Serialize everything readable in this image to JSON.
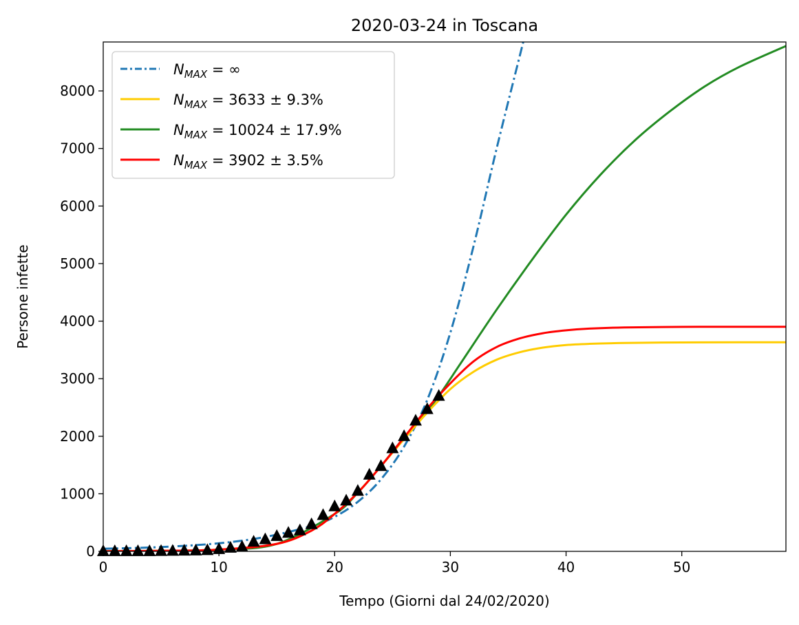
{
  "chart_data": {
    "type": "line",
    "title": "2020-03-24 in Toscana",
    "xlabel": "Tempo (Giorni dal 24/02/2020)",
    "ylabel": "Persone infette",
    "xlim": [
      0,
      59
    ],
    "ylim": [
      0,
      8850
    ],
    "xticks": [
      0,
      10,
      20,
      30,
      40,
      50
    ],
    "yticks": [
      0,
      1000,
      2000,
      3000,
      4000,
      5000,
      6000,
      7000,
      8000
    ],
    "legend_position": "top-left",
    "series": [
      {
        "name": "N_MAX = ∞",
        "legend": {
          "base": "N",
          "sub": "MAX",
          "rest": " = ∞"
        },
        "color": "#1f77b4",
        "style": "dashdot",
        "x": [
          0,
          5,
          10,
          14,
          18,
          20,
          22,
          24,
          26,
          28,
          30,
          32,
          34,
          36.3
        ],
        "y": [
          45,
          75,
          140,
          250,
          440,
          600,
          860,
          1250,
          1820,
          2630,
          3800,
          5300,
          7000,
          8850
        ]
      },
      {
        "name": "N_MAX = 3633 ± 9.3%",
        "legend": {
          "base": "N",
          "sub": "MAX",
          "rest": " = 3633 ± 9.3%"
        },
        "color": "#ffcc00",
        "style": "solid",
        "x": [
          0,
          5,
          10,
          15,
          18,
          20,
          22,
          24,
          26,
          28,
          30,
          32,
          34,
          36,
          38,
          40,
          42,
          45,
          50,
          55,
          59
        ],
        "y": [
          3,
          9,
          30,
          130,
          360,
          650,
          1020,
          1480,
          1950,
          2410,
          2820,
          3120,
          3330,
          3460,
          3540,
          3585,
          3605,
          3620,
          3630,
          3632,
          3633
        ]
      },
      {
        "name": "N_MAX = 10024 ± 17.9%",
        "legend": {
          "base": "N",
          "sub": "MAX",
          "rest": " = 10024 ± 17.9%"
        },
        "color": "#228b22",
        "style": "solid",
        "x": [
          0,
          5,
          10,
          15,
          20,
          22,
          24,
          26,
          28,
          29,
          31,
          34,
          37,
          40,
          43,
          46,
          49,
          52,
          55,
          59
        ],
        "y": [
          3,
          9,
          30,
          130,
          650,
          1020,
          1480,
          1980,
          2450,
          2700,
          3300,
          4200,
          5050,
          5850,
          6550,
          7150,
          7650,
          8080,
          8420,
          8780
        ]
      },
      {
        "name": "N_MAX = 3902 ± 3.5%",
        "legend": {
          "base": "N",
          "sub": "MAX",
          "rest": " = 3902 ± 3.5%"
        },
        "color": "#ff0000",
        "style": "solid",
        "x": [
          0,
          5,
          10,
          15,
          18,
          20,
          22,
          24,
          26,
          28,
          30,
          32,
          34,
          36,
          38,
          40,
          42,
          45,
          50,
          55,
          59
        ],
        "y": [
          3,
          9,
          30,
          130,
          360,
          650,
          1020,
          1480,
          1980,
          2480,
          2920,
          3300,
          3550,
          3700,
          3790,
          3840,
          3870,
          3890,
          3900,
          3902,
          3902
        ]
      }
    ],
    "observed": {
      "marker": "triangle",
      "color": "#000000",
      "x": [
        0,
        1,
        2,
        3,
        4,
        5,
        6,
        7,
        8,
        9,
        10,
        11,
        12,
        13,
        14,
        15,
        16,
        17,
        18,
        19,
        20,
        21,
        22,
        23,
        24,
        25,
        26,
        27,
        28,
        29
      ],
      "y": [
        2,
        2,
        2,
        2,
        2,
        5,
        7,
        10,
        13,
        19,
        37,
        61,
        78,
        166,
        208,
        264,
        320,
        364,
        470,
        630,
        780,
        880,
        1050,
        1330,
        1480,
        1790,
        2000,
        2270,
        2470,
        2700
      ]
    }
  }
}
